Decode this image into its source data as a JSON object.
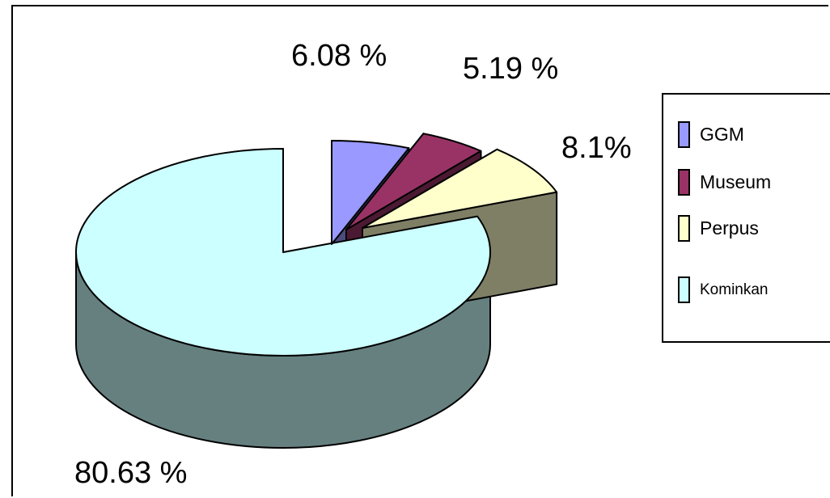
{
  "chart_data": {
    "type": "pie",
    "style": "3d-exploded",
    "slices": [
      {
        "label": "GGM",
        "value": 6.08,
        "value_label": "6.08 %",
        "color": "#9999FF",
        "side_color": "#4B4B7E"
      },
      {
        "label": "Museum",
        "value": 5.19,
        "value_label": "5.19 %",
        "color": "#993366",
        "side_color": "#4C1933"
      },
      {
        "label": "Perpus",
        "value": 8.1,
        "value_label": "8.1%",
        "color": "#FFFFCC",
        "side_color": "#7F7F66"
      },
      {
        "label": "Kominkan",
        "value": 80.63,
        "value_label": "80.63  %",
        "color": "#CCFFFF",
        "side_color": "#668080"
      }
    ],
    "legend_position": "right"
  }
}
